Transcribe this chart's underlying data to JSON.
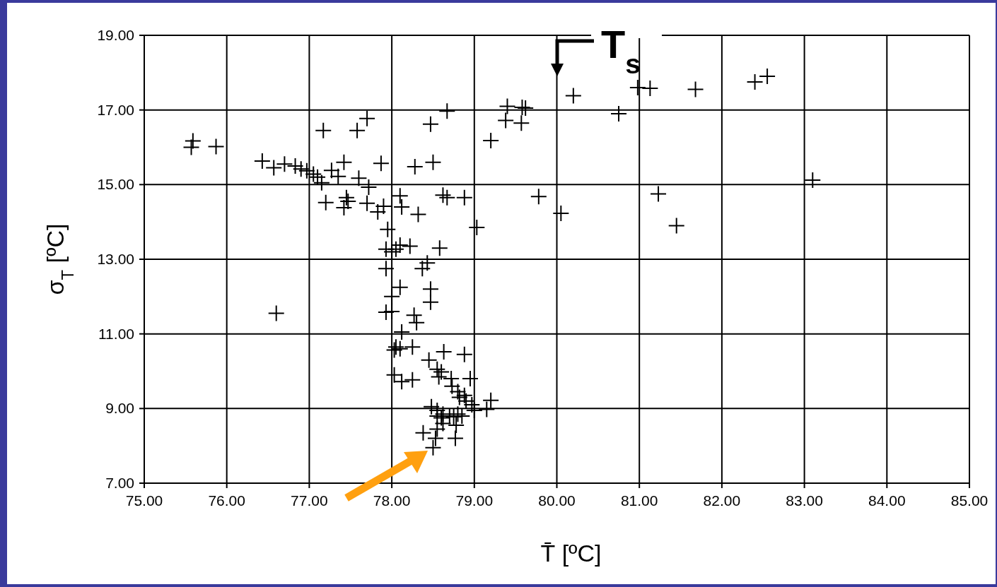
{
  "chart_data": {
    "type": "scatter",
    "xlabel": "T̄ [ºC]",
    "ylabel": "σ$_{T}$ [ºC]",
    "marker": "cross",
    "grid": true,
    "xlim": [
      75,
      85
    ],
    "ylim": [
      7,
      19
    ],
    "xticks": [
      {
        "value": 75,
        "label": "75.00"
      },
      {
        "value": 76,
        "label": "76.00"
      },
      {
        "value": 77,
        "label": "77.00"
      },
      {
        "value": 78,
        "label": "78.00"
      },
      {
        "value": 79,
        "label": "79.00"
      },
      {
        "value": 80,
        "label": "80.00"
      },
      {
        "value": 81,
        "label": "81.00"
      },
      {
        "value": 82,
        "label": "82.00"
      },
      {
        "value": 83,
        "label": "83.00"
      },
      {
        "value": 84,
        "label": "84.00"
      },
      {
        "value": 85,
        "label": "85.00"
      }
    ],
    "yticks": [
      {
        "value": 7,
        "label": "7.00"
      },
      {
        "value": 9,
        "label": "9.00"
      },
      {
        "value": 11,
        "label": "11.00"
      },
      {
        "value": 13,
        "label": "13.00"
      },
      {
        "value": 15,
        "label": "15.00"
      },
      {
        "value": 17,
        "label": "17.00"
      },
      {
        "value": 19,
        "label": "19.00"
      }
    ],
    "annotations": [
      "T$_{s}$"
    ],
    "series": [
      {
        "color": "#000000",
        "x": [
          75.57,
          75.59,
          75.87,
          76.43,
          76.57,
          76.7,
          76.83,
          76.9,
          76.97,
          77.05,
          77.1,
          77.15,
          77.17,
          77.2,
          77.27,
          77.35,
          77.42,
          77.42,
          77.45,
          77.47,
          77.58,
          77.6,
          77.7,
          77.7,
          77.72,
          77.83,
          77.87,
          77.9,
          77.95,
          77.93,
          77.93,
          78.0,
          78.05,
          78.1,
          78.22,
          78.1,
          78.12,
          78.28,
          78.32,
          78.47,
          78.5,
          78.62,
          78.67,
          78.88,
          78.67,
          79.2,
          79.38,
          79.4,
          79.58,
          79.57,
          79.62,
          79.78,
          80.05,
          80.2,
          80.75,
          80.98,
          81.13,
          81.68,
          82.4,
          82.55,
          83.1,
          81.23,
          81.45,
          79.03,
          78.58,
          78.37,
          78.43,
          78.47,
          78.47,
          78.27,
          78.3,
          78.0,
          78.1,
          78.0,
          77.93,
          78.12,
          78.25,
          78.03,
          78.05,
          78.1,
          78.03,
          78.12,
          78.25,
          78.45,
          78.55,
          78.6,
          78.57,
          78.63,
          78.88,
          78.72,
          78.73,
          78.8,
          78.82,
          78.88,
          78.95,
          78.9,
          78.97,
          79.0,
          79.15,
          79.2,
          78.48,
          78.55,
          78.55,
          78.6,
          78.62,
          78.7,
          78.75,
          78.8,
          78.85,
          78.78,
          78.77,
          78.55,
          78.53,
          78.5,
          78.38,
          78.62,
          76.6
        ],
        "values": [
          16.0,
          16.17,
          16.02,
          15.63,
          15.45,
          15.55,
          15.5,
          15.42,
          15.37,
          15.28,
          15.2,
          15.05,
          16.45,
          14.52,
          15.38,
          15.22,
          15.6,
          14.38,
          14.65,
          14.55,
          16.45,
          15.17,
          16.77,
          14.5,
          14.93,
          14.27,
          15.57,
          14.42,
          13.8,
          13.27,
          12.75,
          13.2,
          13.27,
          13.38,
          13.35,
          14.7,
          14.4,
          15.48,
          14.2,
          16.62,
          15.6,
          14.72,
          14.65,
          14.65,
          16.97,
          16.18,
          16.72,
          17.1,
          17.07,
          16.65,
          17.05,
          14.68,
          14.23,
          17.38,
          16.9,
          17.6,
          17.58,
          17.55,
          17.75,
          17.9,
          15.12,
          14.75,
          13.9,
          13.85,
          13.3,
          12.75,
          12.9,
          12.2,
          11.85,
          11.5,
          11.3,
          12.0,
          12.25,
          11.6,
          11.58,
          11.05,
          10.65,
          10.57,
          10.65,
          10.6,
          9.9,
          9.72,
          9.77,
          10.3,
          10.05,
          9.98,
          9.85,
          10.52,
          10.45,
          9.8,
          9.6,
          9.45,
          9.3,
          9.35,
          9.8,
          9.2,
          9.1,
          8.95,
          8.98,
          9.22,
          9.05,
          8.95,
          8.8,
          8.75,
          8.85,
          8.8,
          8.78,
          8.85,
          8.8,
          8.55,
          8.2,
          8.45,
          8.2,
          7.95,
          8.35,
          8.6,
          11.55
        ]
      }
    ]
  }
}
